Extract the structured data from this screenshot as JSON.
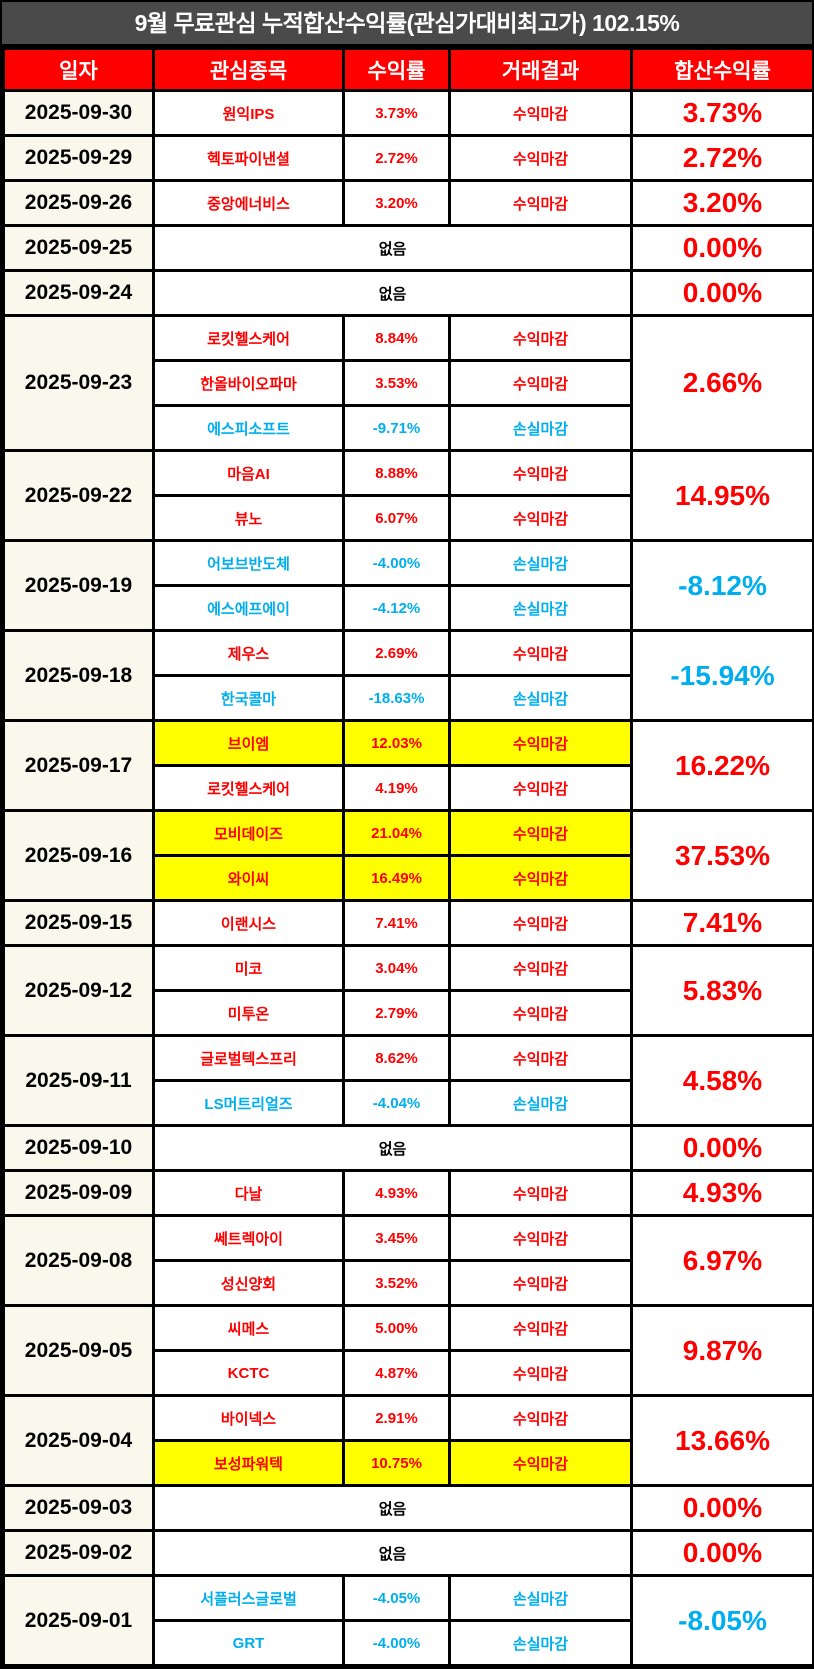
{
  "title": "9월 무료관심 누적합산수익률(관심가대비최고가) 102.15%",
  "colors": {
    "title_bg": "#4a4a4a",
    "header_bg": "#ff0000",
    "date_bg": "#faf8ec",
    "highlight": "#ffff00",
    "profit": "#ff0000",
    "loss": "#00aeef",
    "border": "#000000"
  },
  "table": {
    "headers": [
      "일자",
      "관심종목",
      "수익률",
      "거래결과",
      "합산수익률"
    ],
    "none_label": "없음",
    "groups": [
      {
        "date": "2025-09-30",
        "total": "3.73%",
        "total_tone": "red",
        "entries": [
          {
            "name": "원익IPS",
            "return": "3.73%",
            "result": "수익마감",
            "tone": "red",
            "highlight": false
          }
        ]
      },
      {
        "date": "2025-09-29",
        "total": "2.72%",
        "total_tone": "red",
        "entries": [
          {
            "name": "헥토파이낸셜",
            "return": "2.72%",
            "result": "수익마감",
            "tone": "red",
            "highlight": false
          }
        ]
      },
      {
        "date": "2025-09-26",
        "total": "3.20%",
        "total_tone": "red",
        "entries": [
          {
            "name": "중앙에너비스",
            "return": "3.20%",
            "result": "수익마감",
            "tone": "red",
            "highlight": false
          }
        ]
      },
      {
        "date": "2025-09-25",
        "total": "0.00%",
        "total_tone": "red",
        "entries": []
      },
      {
        "date": "2025-09-24",
        "total": "0.00%",
        "total_tone": "red",
        "entries": []
      },
      {
        "date": "2025-09-23",
        "total": "2.66%",
        "total_tone": "red",
        "entries": [
          {
            "name": "로킷헬스케어",
            "return": "8.84%",
            "result": "수익마감",
            "tone": "red",
            "highlight": false
          },
          {
            "name": "한올바이오파마",
            "return": "3.53%",
            "result": "수익마감",
            "tone": "red",
            "highlight": false
          },
          {
            "name": "에스피소프트",
            "return": "-9.71%",
            "result": "손실마감",
            "tone": "blue",
            "highlight": false
          }
        ]
      },
      {
        "date": "2025-09-22",
        "total": "14.95%",
        "total_tone": "red",
        "entries": [
          {
            "name": "마음AI",
            "return": "8.88%",
            "result": "수익마감",
            "tone": "red",
            "highlight": false
          },
          {
            "name": "뷰노",
            "return": "6.07%",
            "result": "수익마감",
            "tone": "red",
            "highlight": false
          }
        ]
      },
      {
        "date": "2025-09-19",
        "total": "-8.12%",
        "total_tone": "blue",
        "entries": [
          {
            "name": "어보브반도체",
            "return": "-4.00%",
            "result": "손실마감",
            "tone": "blue",
            "highlight": false
          },
          {
            "name": "에스에프에이",
            "return": "-4.12%",
            "result": "손실마감",
            "tone": "blue",
            "highlight": false
          }
        ]
      },
      {
        "date": "2025-09-18",
        "total": "-15.94%",
        "total_tone": "blue",
        "entries": [
          {
            "name": "제우스",
            "return": "2.69%",
            "result": "수익마감",
            "tone": "red",
            "highlight": false
          },
          {
            "name": "한국콜마",
            "return": "-18.63%",
            "result": "손실마감",
            "tone": "blue",
            "highlight": false
          }
        ]
      },
      {
        "date": "2025-09-17",
        "total": "16.22%",
        "total_tone": "red",
        "entries": [
          {
            "name": "브이엠",
            "return": "12.03%",
            "result": "수익마감",
            "tone": "red",
            "highlight": true
          },
          {
            "name": "로킷헬스케어",
            "return": "4.19%",
            "result": "수익마감",
            "tone": "red",
            "highlight": false
          }
        ]
      },
      {
        "date": "2025-09-16",
        "total": "37.53%",
        "total_tone": "red",
        "entries": [
          {
            "name": "모비데이즈",
            "return": "21.04%",
            "result": "수익마감",
            "tone": "red",
            "highlight": true
          },
          {
            "name": "와이씨",
            "return": "16.49%",
            "result": "수익마감",
            "tone": "red",
            "highlight": true
          }
        ]
      },
      {
        "date": "2025-09-15",
        "total": "7.41%",
        "total_tone": "red",
        "entries": [
          {
            "name": "이랜시스",
            "return": "7.41%",
            "result": "수익마감",
            "tone": "red",
            "highlight": false
          }
        ]
      },
      {
        "date": "2025-09-12",
        "total": "5.83%",
        "total_tone": "red",
        "entries": [
          {
            "name": "미코",
            "return": "3.04%",
            "result": "수익마감",
            "tone": "red",
            "highlight": false
          },
          {
            "name": "미투온",
            "return": "2.79%",
            "result": "수익마감",
            "tone": "red",
            "highlight": false
          }
        ]
      },
      {
        "date": "2025-09-11",
        "total": "4.58%",
        "total_tone": "red",
        "entries": [
          {
            "name": "글로벌텍스프리",
            "return": "8.62%",
            "result": "수익마감",
            "tone": "red",
            "highlight": false
          },
          {
            "name": "LS머트리얼즈",
            "return": "-4.04%",
            "result": "손실마감",
            "tone": "blue",
            "highlight": false
          }
        ]
      },
      {
        "date": "2025-09-10",
        "total": "0.00%",
        "total_tone": "red",
        "entries": []
      },
      {
        "date": "2025-09-09",
        "total": "4.93%",
        "total_tone": "red",
        "entries": [
          {
            "name": "다날",
            "return": "4.93%",
            "result": "수익마감",
            "tone": "red",
            "highlight": false
          }
        ]
      },
      {
        "date": "2025-09-08",
        "total": "6.97%",
        "total_tone": "red",
        "entries": [
          {
            "name": "쎄트렉아이",
            "return": "3.45%",
            "result": "수익마감",
            "tone": "red",
            "highlight": false
          },
          {
            "name": "성신양회",
            "return": "3.52%",
            "result": "수익마감",
            "tone": "red",
            "highlight": false
          }
        ]
      },
      {
        "date": "2025-09-05",
        "total": "9.87%",
        "total_tone": "red",
        "entries": [
          {
            "name": "씨메스",
            "return": "5.00%",
            "result": "수익마감",
            "tone": "red",
            "highlight": false
          },
          {
            "name": "KCTC",
            "return": "4.87%",
            "result": "수익마감",
            "tone": "red",
            "highlight": false
          }
        ]
      },
      {
        "date": "2025-09-04",
        "total": "13.66%",
        "total_tone": "red",
        "entries": [
          {
            "name": "바이넥스",
            "return": "2.91%",
            "result": "수익마감",
            "tone": "red",
            "highlight": false
          },
          {
            "name": "보성파워텍",
            "return": "10.75%",
            "result": "수익마감",
            "tone": "red",
            "highlight": true
          }
        ]
      },
      {
        "date": "2025-09-03",
        "total": "0.00%",
        "total_tone": "red",
        "entries": []
      },
      {
        "date": "2025-09-02",
        "total": "0.00%",
        "total_tone": "red",
        "entries": []
      },
      {
        "date": "2025-09-01",
        "total": "-8.05%",
        "total_tone": "blue",
        "entries": [
          {
            "name": "서플러스글로벌",
            "return": "-4.05%",
            "result": "손실마감",
            "tone": "blue",
            "highlight": false
          },
          {
            "name": "GRT",
            "return": "-4.00%",
            "result": "손실마감",
            "tone": "blue",
            "highlight": false
          }
        ]
      }
    ]
  }
}
